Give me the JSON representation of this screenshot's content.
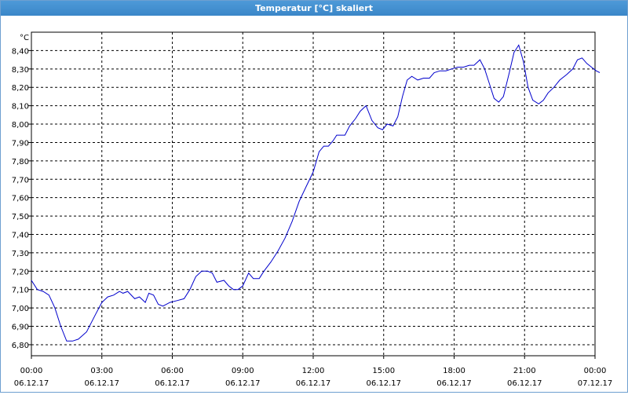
{
  "window": {
    "title": "Temperatur [°C] skaliert"
  },
  "chart_data": {
    "type": "line",
    "title": "Temperatur [°C] skaliert",
    "ylabel": "°C",
    "xlabel": "",
    "ylim": [
      6.74,
      8.5
    ],
    "y_ticks": [
      "6,80",
      "6,90",
      "7,00",
      "7,10",
      "7,20",
      "7,30",
      "7,40",
      "7,50",
      "7,60",
      "7,70",
      "7,80",
      "7,90",
      "8,00",
      "8,10",
      "8,20",
      "8,30",
      "8,40"
    ],
    "y_tick_values": [
      6.8,
      6.9,
      7.0,
      7.1,
      7.2,
      7.3,
      7.4,
      7.5,
      7.6,
      7.7,
      7.8,
      7.9,
      8.0,
      8.1,
      8.2,
      8.3,
      8.4
    ],
    "x_range_hours": [
      0,
      24
    ],
    "x_ticks": [
      {
        "h": 0,
        "time": "00:00",
        "date": "06.12.17"
      },
      {
        "h": 3,
        "time": "03:00",
        "date": "06.12.17"
      },
      {
        "h": 6,
        "time": "06:00",
        "date": "06.12.17"
      },
      {
        "h": 9,
        "time": "09:00",
        "date": "06.12.17"
      },
      {
        "h": 12,
        "time": "12:00",
        "date": "06.12.17"
      },
      {
        "h": 15,
        "time": "15:00",
        "date": "06.12.17"
      },
      {
        "h": 18,
        "time": "18:00",
        "date": "06.12.17"
      },
      {
        "h": 21,
        "time": "21:00",
        "date": "06.12.17"
      },
      {
        "h": 24,
        "time": "00:00",
        "date": "07.12.17"
      }
    ],
    "grid": true,
    "series": [
      {
        "color": "#0000cc",
        "points": [
          [
            0.0,
            7.15
          ],
          [
            0.25,
            7.1
          ],
          [
            0.5,
            7.09
          ],
          [
            0.75,
            7.07
          ],
          [
            1.0,
            7.0
          ],
          [
            1.25,
            6.9
          ],
          [
            1.5,
            6.82
          ],
          [
            1.75,
            6.82
          ],
          [
            2.0,
            6.83
          ],
          [
            2.35,
            6.87
          ],
          [
            2.75,
            6.97
          ],
          [
            3.0,
            7.03
          ],
          [
            3.25,
            7.06
          ],
          [
            3.5,
            7.07
          ],
          [
            3.75,
            7.09
          ],
          [
            3.9,
            7.08
          ],
          [
            4.1,
            7.09
          ],
          [
            4.4,
            7.05
          ],
          [
            4.6,
            7.06
          ],
          [
            4.85,
            7.03
          ],
          [
            5.0,
            7.08
          ],
          [
            5.2,
            7.07
          ],
          [
            5.4,
            7.02
          ],
          [
            5.6,
            7.01
          ],
          [
            5.9,
            7.03
          ],
          [
            6.2,
            7.04
          ],
          [
            6.5,
            7.05
          ],
          [
            6.75,
            7.1
          ],
          [
            7.0,
            7.17
          ],
          [
            7.25,
            7.2
          ],
          [
            7.5,
            7.2
          ],
          [
            7.7,
            7.19
          ],
          [
            7.9,
            7.14
          ],
          [
            8.2,
            7.15
          ],
          [
            8.4,
            7.12
          ],
          [
            8.6,
            7.1
          ],
          [
            8.8,
            7.1
          ],
          [
            9.0,
            7.12
          ],
          [
            9.25,
            7.19
          ],
          [
            9.45,
            7.16
          ],
          [
            9.7,
            7.16
          ],
          [
            9.9,
            7.2
          ],
          [
            10.2,
            7.25
          ],
          [
            10.5,
            7.31
          ],
          [
            10.8,
            7.38
          ],
          [
            11.1,
            7.47
          ],
          [
            11.4,
            7.58
          ],
          [
            11.7,
            7.66
          ],
          [
            12.0,
            7.74
          ],
          [
            12.25,
            7.85
          ],
          [
            12.45,
            7.88
          ],
          [
            12.65,
            7.88
          ],
          [
            12.85,
            7.91
          ],
          [
            13.0,
            7.94
          ],
          [
            13.35,
            7.94
          ],
          [
            13.55,
            7.99
          ],
          [
            13.8,
            8.03
          ],
          [
            14.0,
            8.07
          ],
          [
            14.25,
            8.1
          ],
          [
            14.5,
            8.02
          ],
          [
            14.75,
            7.98
          ],
          [
            14.95,
            7.97
          ],
          [
            15.15,
            8.0
          ],
          [
            15.4,
            7.99
          ],
          [
            15.6,
            8.04
          ],
          [
            15.8,
            8.15
          ],
          [
            16.0,
            8.24
          ],
          [
            16.2,
            8.26
          ],
          [
            16.45,
            8.24
          ],
          [
            16.7,
            8.25
          ],
          [
            16.95,
            8.25
          ],
          [
            17.15,
            8.28
          ],
          [
            17.4,
            8.29
          ],
          [
            17.65,
            8.29
          ],
          [
            17.9,
            8.3
          ],
          [
            18.15,
            8.31
          ],
          [
            18.4,
            8.31
          ],
          [
            18.65,
            8.32
          ],
          [
            18.85,
            8.32
          ],
          [
            19.1,
            8.35
          ],
          [
            19.3,
            8.3
          ],
          [
            19.5,
            8.22
          ],
          [
            19.7,
            8.14
          ],
          [
            19.9,
            8.12
          ],
          [
            20.1,
            8.15
          ],
          [
            20.35,
            8.28
          ],
          [
            20.55,
            8.39
          ],
          [
            20.75,
            8.43
          ],
          [
            20.95,
            8.34
          ],
          [
            21.15,
            8.2
          ],
          [
            21.35,
            8.13
          ],
          [
            21.6,
            8.11
          ],
          [
            21.8,
            8.13
          ],
          [
            22.0,
            8.17
          ],
          [
            22.25,
            8.2
          ],
          [
            22.5,
            8.24
          ],
          [
            22.8,
            8.27
          ],
          [
            23.05,
            8.3
          ],
          [
            23.25,
            8.35
          ],
          [
            23.45,
            8.36
          ],
          [
            23.65,
            8.33
          ],
          [
            23.85,
            8.31
          ],
          [
            24.05,
            8.29
          ],
          [
            24.2,
            8.28
          ]
        ]
      }
    ]
  }
}
